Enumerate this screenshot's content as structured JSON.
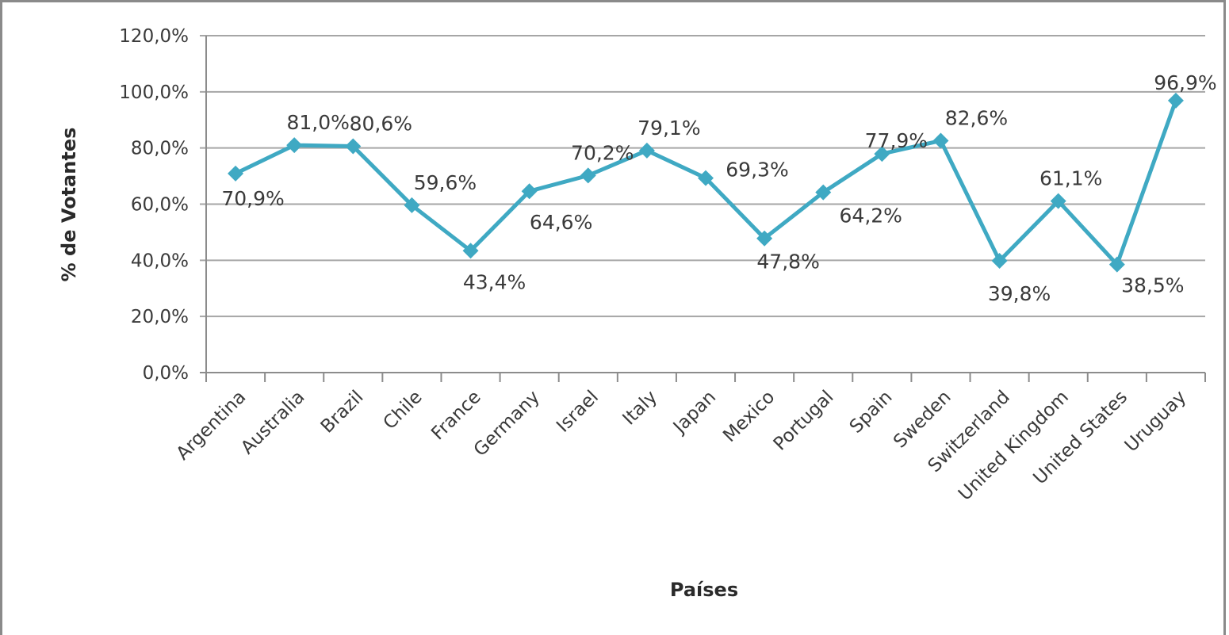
{
  "chart_data": {
    "type": "line",
    "title": "",
    "xlabel": "Países",
    "ylabel": "% de Votantes",
    "ylim": [
      0,
      120
    ],
    "y_ticks": [
      "0,0%",
      "20,0%",
      "40,0%",
      "60,0%",
      "80,0%",
      "100,0%",
      "120,0%"
    ],
    "y_tick_values": [
      0,
      20,
      40,
      60,
      80,
      100,
      120
    ],
    "grid": "horizontal",
    "legend": "none",
    "categories": [
      "Argentina",
      "Australia",
      "Brazil",
      "Chile",
      "France",
      "Germany",
      "Israel",
      "Italy",
      "Japan",
      "Mexico",
      "Portugal",
      "Spain",
      "Sweden",
      "Switzerland",
      "United Kingdom",
      "United States",
      "Uruguay"
    ],
    "values": [
      70.9,
      81.0,
      80.6,
      59.6,
      43.4,
      64.6,
      70.2,
      79.1,
      69.3,
      47.8,
      64.2,
      77.9,
      82.6,
      39.8,
      61.1,
      38.5,
      96.9
    ],
    "data_labels": [
      "70,9%",
      "81,0%",
      "80,6%",
      "59,6%",
      "43,4%",
      "64,6%",
      "70,2%",
      "79,1%",
      "69,3%",
      "47,8%",
      "64,2%",
      "77,9%",
      "82,6%",
      "39,8%",
      "61,1%",
      "38,5%",
      "96,9%"
    ],
    "colors": {
      "line": "#3fa9c3",
      "grid": "#a6a6a6",
      "axis": "#8c8c8c"
    },
    "marker": "diamond"
  }
}
